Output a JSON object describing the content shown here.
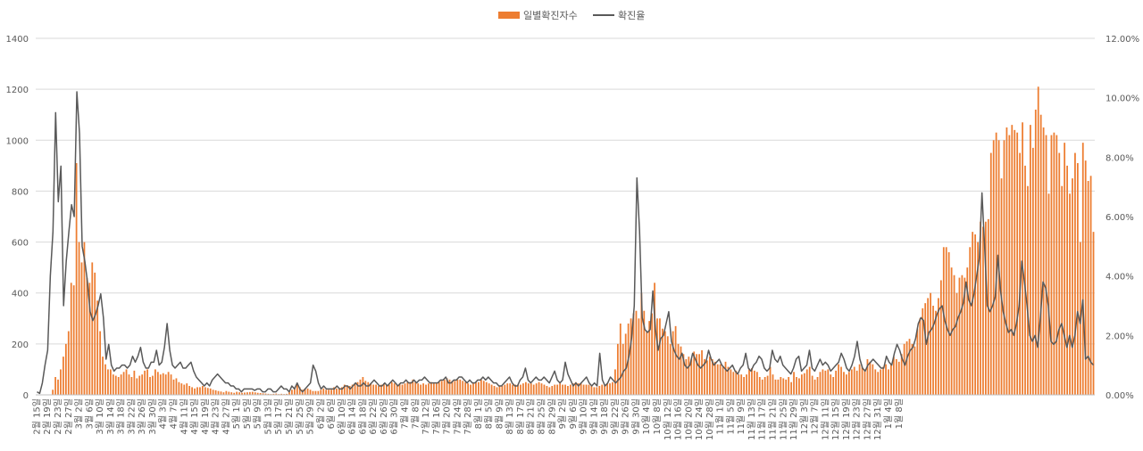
{
  "chart_data": {
    "type": "bar+line",
    "title": "",
    "legend": {
      "position": "top",
      "bar_label": "일별확진자수",
      "line_label": "확진율"
    },
    "colors": {
      "bar": "#ED7D31",
      "line": "#595959",
      "grid": "#D9D9D9"
    },
    "y_left": {
      "min": 0,
      "max": 1400,
      "ticks": [
        "0",
        "200",
        "400",
        "600",
        "800",
        "1000",
        "1200",
        "1400"
      ]
    },
    "y_right": {
      "min": 0,
      "max": 12,
      "ticks": [
        "0.00%",
        "2.00%",
        "4.00%",
        "6.00%",
        "8.00%",
        "10.00%",
        "12.00%"
      ]
    },
    "x_tick_labels": [
      "2월 15일",
      "2월 19일",
      "2월 23일",
      "2월 27일",
      "3월 2일",
      "3월 6일",
      "3월 10일",
      "3월 14일",
      "3월 18일",
      "3월 22일",
      "3월 26일",
      "3월 30일",
      "4월 3일",
      "4월 7일",
      "4월 11일",
      "4월 15일",
      "4월 19일",
      "4월 23일",
      "4월 27일",
      "5월 1일",
      "5월 5일",
      "5월 9일",
      "5월 13일",
      "5월 17일",
      "5월 21일",
      "5월 25일",
      "5월 29일",
      "6월 2일",
      "6월 6일",
      "6월 10일",
      "6월 14일",
      "6월 18일",
      "6월 22일",
      "6월 26일",
      "6월 30일",
      "7월 4일",
      "7월 8일",
      "7월 12일",
      "7월 16일",
      "7월 20일",
      "7월 24일",
      "7월 28일",
      "8월 1일",
      "8월 5일",
      "8월 9일",
      "8월 13일",
      "8월 17일",
      "8월 21일",
      "8월 25일",
      "8월 29일",
      "9월 2일",
      "9월 6일",
      "9월 10일",
      "9월 14일",
      "9월 18일",
      "9월 22일",
      "9월 26일",
      "9월 30일",
      "10월 4일",
      "10월 8일",
      "10월 12일",
      "10월 16일",
      "10월 20일",
      "10월 24일",
      "10월 28일",
      "11월 1일",
      "11월 5일",
      "11월 9일",
      "11월 13일",
      "11월 17일",
      "11월 21일",
      "11월 25일",
      "11월 29일",
      "12월 3일",
      "12월 7일",
      "12월 11일",
      "12월 15일",
      "12월 19일",
      "12월 23일",
      "12월 27일",
      "12월 31일",
      "1월 4일",
      "1월 8일"
    ],
    "daily_cases": [
      0,
      0,
      1,
      0,
      0,
      0,
      20,
      70,
      60,
      100,
      150,
      200,
      250,
      440,
      430,
      910,
      600,
      520,
      600,
      460,
      440,
      520,
      480,
      370,
      250,
      150,
      120,
      100,
      100,
      80,
      75,
      70,
      80,
      90,
      100,
      80,
      70,
      95,
      65,
      75,
      80,
      95,
      100,
      70,
      75,
      100,
      90,
      80,
      85,
      80,
      90,
      80,
      60,
      65,
      50,
      45,
      40,
      45,
      35,
      30,
      25,
      30,
      30,
      35,
      30,
      27,
      25,
      20,
      18,
      15,
      13,
      10,
      15,
      12,
      10,
      8,
      12,
      10,
      8,
      9,
      10,
      11,
      12,
      10,
      8,
      7,
      6,
      5,
      4,
      3,
      4,
      5,
      3,
      4,
      3,
      4,
      10,
      20,
      30,
      40,
      30,
      20,
      25,
      25,
      20,
      15,
      15,
      15,
      20,
      25,
      20,
      20,
      20,
      30,
      25,
      25,
      30,
      40,
      35,
      35,
      40,
      45,
      50,
      60,
      70,
      55,
      50,
      45,
      40,
      40,
      35,
      40,
      45,
      40,
      40,
      50,
      45,
      40,
      45,
      40,
      45,
      50,
      50,
      60,
      50,
      45,
      40,
      45,
      40,
      45,
      50,
      45,
      45,
      50,
      55,
      60,
      65,
      60,
      55,
      55,
      60,
      60,
      55,
      50,
      45,
      40,
      45,
      50,
      50,
      60,
      55,
      50,
      45,
      40,
      35,
      30,
      35,
      35,
      40,
      45,
      45,
      40,
      40,
      40,
      40,
      45,
      50,
      45,
      45,
      40,
      45,
      50,
      45,
      40,
      35,
      30,
      35,
      40,
      40,
      45,
      40,
      40,
      35,
      40,
      45,
      50,
      45,
      45,
      40,
      40,
      40,
      35,
      30,
      30,
      35,
      40,
      40,
      45,
      45,
      50,
      100,
      200,
      280,
      200,
      240,
      280,
      300,
      320,
      330,
      300,
      400,
      330,
      250,
      290,
      320,
      440,
      300,
      300,
      260,
      250,
      230,
      200,
      250,
      270,
      200,
      190,
      160,
      140,
      150,
      140,
      170,
      160,
      160,
      175,
      140,
      135,
      150,
      140,
      130,
      120,
      120,
      110,
      130,
      110,
      100,
      90,
      95,
      80,
      80,
      70,
      80,
      100,
      105,
      95,
      90,
      70,
      60,
      70,
      75,
      110,
      80,
      60,
      60,
      70,
      65,
      60,
      70,
      50,
      90,
      70,
      65,
      80,
      85,
      100,
      110,
      75,
      60,
      70,
      90,
      100,
      95,
      100,
      80,
      70,
      95,
      120,
      110,
      90,
      80,
      90,
      100,
      110,
      95,
      120,
      110,
      100,
      140,
      130,
      120,
      100,
      90,
      100,
      110,
      120,
      100,
      120,
      150,
      140,
      130,
      160,
      200,
      210,
      220,
      200,
      190,
      260,
      300,
      340,
      360,
      380,
      400,
      350,
      330,
      380,
      450,
      580,
      580,
      560,
      500,
      470,
      400,
      460,
      470,
      460,
      500,
      580,
      640,
      630,
      600,
      680,
      660,
      680,
      690,
      950,
      1000,
      1030,
      1000,
      850,
      1000,
      1050,
      1020,
      1060,
      1040,
      1030,
      950,
      1070,
      900,
      820,
      1060,
      970,
      1120,
      1210,
      1100,
      1050,
      1020,
      790,
      1020,
      1030,
      1020,
      950,
      820,
      990,
      900,
      790,
      850,
      950,
      910,
      600,
      990,
      920,
      840,
      860,
      640
    ],
    "positivity_rate_pct": [
      0.1,
      0.05,
      0.4,
      1.0,
      1.5,
      4.0,
      5.5,
      9.5,
      6.5,
      7.7,
      3.0,
      4.5,
      5.5,
      6.4,
      6.0,
      10.2,
      8.8,
      5.0,
      4.5,
      3.8,
      2.8,
      2.5,
      2.7,
      3.0,
      3.4,
      2.6,
      1.2,
      1.7,
      1.0,
      0.8,
      0.9,
      0.9,
      1.0,
      1.0,
      0.9,
      1.0,
      1.3,
      1.1,
      1.3,
      1.6,
      1.1,
      0.9,
      0.9,
      1.1,
      1.1,
      1.5,
      1.0,
      1.1,
      1.6,
      2.4,
      1.5,
      1.0,
      0.9,
      1.0,
      1.1,
      0.9,
      0.9,
      1.0,
      1.1,
      0.8,
      0.6,
      0.5,
      0.4,
      0.3,
      0.4,
      0.3,
      0.5,
      0.6,
      0.7,
      0.6,
      0.5,
      0.4,
      0.4,
      0.3,
      0.3,
      0.2,
      0.2,
      0.1,
      0.2,
      0.2,
      0.2,
      0.2,
      0.15,
      0.2,
      0.2,
      0.1,
      0.1,
      0.2,
      0.2,
      0.1,
      0.1,
      0.2,
      0.3,
      0.2,
      0.2,
      0.1,
      0.3,
      0.2,
      0.4,
      0.2,
      0.1,
      0.2,
      0.3,
      0.4,
      1.0,
      0.8,
      0.4,
      0.2,
      0.3,
      0.2,
      0.2,
      0.2,
      0.2,
      0.3,
      0.2,
      0.2,
      0.3,
      0.3,
      0.2,
      0.3,
      0.4,
      0.3,
      0.3,
      0.4,
      0.3,
      0.3,
      0.4,
      0.5,
      0.4,
      0.3,
      0.3,
      0.4,
      0.3,
      0.4,
      0.5,
      0.4,
      0.3,
      0.4,
      0.4,
      0.5,
      0.4,
      0.4,
      0.5,
      0.4,
      0.5,
      0.5,
      0.6,
      0.5,
      0.4,
      0.4,
      0.4,
      0.4,
      0.5,
      0.5,
      0.6,
      0.4,
      0.4,
      0.5,
      0.5,
      0.6,
      0.6,
      0.5,
      0.4,
      0.5,
      0.4,
      0.4,
      0.5,
      0.5,
      0.6,
      0.5,
      0.6,
      0.5,
      0.4,
      0.4,
      0.3,
      0.3,
      0.4,
      0.5,
      0.6,
      0.4,
      0.3,
      0.3,
      0.5,
      0.6,
      0.9,
      0.5,
      0.4,
      0.5,
      0.6,
      0.5,
      0.5,
      0.6,
      0.5,
      0.4,
      0.6,
      0.8,
      0.5,
      0.4,
      0.5,
      1.1,
      0.7,
      0.5,
      0.3,
      0.4,
      0.3,
      0.4,
      0.5,
      0.6,
      0.4,
      0.3,
      0.4,
      0.3,
      1.4,
      0.5,
      0.3,
      0.4,
      0.6,
      0.5,
      0.4,
      0.5,
      0.6,
      0.8,
      0.9,
      1.3,
      1.9,
      3.0,
      7.3,
      5.5,
      2.6,
      2.2,
      2.1,
      2.2,
      3.5,
      2.2,
      1.5,
      1.9,
      2.0,
      2.4,
      2.8,
      1.8,
      1.5,
      1.3,
      1.2,
      1.4,
      1.0,
      0.9,
      1.0,
      1.4,
      1.2,
      1.0,
      0.9,
      1.0,
      1.1,
      1.5,
      1.2,
      1.0,
      1.1,
      1.2,
      1.0,
      0.9,
      0.8,
      0.9,
      1.0,
      0.8,
      0.7,
      0.9,
      1.0,
      1.4,
      0.9,
      0.8,
      1.0,
      1.1,
      1.3,
      1.2,
      0.9,
      0.8,
      0.9,
      1.5,
      1.2,
      1.1,
      1.3,
      1.0,
      0.9,
      0.8,
      0.7,
      0.9,
      1.2,
      1.3,
      0.8,
      0.9,
      1.0,
      1.5,
      0.9,
      0.8,
      1.0,
      1.2,
      1.0,
      1.1,
      1.0,
      0.8,
      0.9,
      1.0,
      1.1,
      1.4,
      1.2,
      0.9,
      0.8,
      1.0,
      1.3,
      1.8,
      1.2,
      0.9,
      0.8,
      1.0,
      1.1,
      1.2,
      1.1,
      1.0,
      0.9,
      0.9,
      1.3,
      1.1,
      1.0,
      1.4,
      1.7,
      1.5,
      1.2,
      1.0,
      1.3,
      1.5,
      1.6,
      1.9,
      2.4,
      2.6,
      2.5,
      1.7,
      2.1,
      2.2,
      2.4,
      2.7,
      2.9,
      3.0,
      2.5,
      2.2,
      2.0,
      2.2,
      2.3,
      2.6,
      2.8,
      3.1,
      3.8,
      3.2,
      3.0,
      3.4,
      4.0,
      4.6,
      6.8,
      5.0,
      3.0,
      2.8,
      3.0,
      3.3,
      4.7,
      3.5,
      2.8,
      2.4,
      2.1,
      2.2,
      2.0,
      2.4,
      3.0,
      4.5,
      3.8,
      3.0,
      2.0,
      1.8,
      2.0,
      1.6,
      2.6,
      3.8,
      3.6,
      3.0,
      1.8,
      1.7,
      1.8,
      2.2,
      2.4,
      2.0,
      1.6,
      2.0,
      1.6,
      2.0,
      2.8,
      2.4,
      3.2,
      1.2,
      1.3,
      1.1,
      1.0
    ]
  }
}
